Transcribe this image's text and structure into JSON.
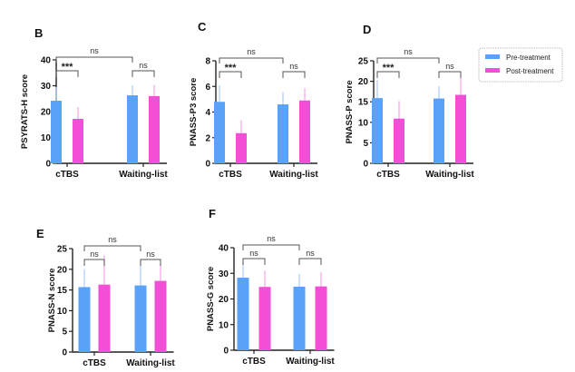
{
  "legend": {
    "entries": [
      {
        "label": "Pre-treatment",
        "color": "#5aa2f8"
      },
      {
        "label": "Post-treatment",
        "color": "#f24fd6"
      }
    ]
  },
  "colors": {
    "pre": "#5aa2f8",
    "pre_err": "#a9cffb",
    "post": "#f24fd6",
    "post_err": "#f6a3e8",
    "axis": "#222222",
    "bracket": "#555555"
  },
  "chart_data": [
    {
      "panel": "B",
      "type": "bar",
      "ylabel": "PSYRATS-H score",
      "ylim": [
        0,
        40
      ],
      "yticks": [
        0,
        10,
        20,
        30,
        40
      ],
      "categories": [
        "cTBS",
        "Waiting-list"
      ],
      "series": [
        {
          "name": "Pre-treatment",
          "values": [
            24.2,
            26.3
          ],
          "error_upper": [
            29.5,
            30.2
          ]
        },
        {
          "name": "Post-treatment",
          "values": [
            17.2,
            26.0
          ],
          "error_upper": [
            21.8,
            30.3
          ]
        }
      ],
      "annotations": [
        {
          "type": "bracket",
          "between": "cTBS pre vs cTBS post",
          "label": "***"
        },
        {
          "type": "bracket",
          "between": "Waiting-list pre vs Waiting-list post",
          "label": "ns"
        },
        {
          "type": "bracket",
          "between": "cTBS pre vs Waiting-list pre",
          "label": "ns"
        }
      ]
    },
    {
      "panel": "C",
      "type": "bar",
      "ylabel": "PNASS-P3 score",
      "ylim": [
        0,
        8
      ],
      "yticks": [
        0,
        2,
        4,
        6,
        8
      ],
      "categories": [
        "cTBS",
        "Waiting-list"
      ],
      "series": [
        {
          "name": "Pre-treatment",
          "values": [
            4.8,
            4.6
          ],
          "error_upper": [
            6.1,
            5.55
          ]
        },
        {
          "name": "Post-treatment",
          "values": [
            2.35,
            4.9
          ],
          "error_upper": [
            3.35,
            5.85
          ]
        }
      ],
      "annotations": [
        {
          "type": "bracket",
          "between": "cTBS pre vs cTBS post",
          "label": "***"
        },
        {
          "type": "bracket",
          "between": "Waiting-list pre vs Waiting-list post",
          "label": "ns"
        },
        {
          "type": "bracket",
          "between": "cTBS pre vs Waiting-list pre",
          "label": "ns"
        }
      ]
    },
    {
      "panel": "D",
      "type": "bar",
      "ylabel": "PNASS-P score",
      "ylim": [
        0,
        25
      ],
      "yticks": [
        0,
        5,
        10,
        15,
        20,
        25
      ],
      "categories": [
        "cTBS",
        "Waiting-list"
      ],
      "series": [
        {
          "name": "Pre-treatment",
          "values": [
            15.9,
            15.8
          ],
          "error_upper": [
            20.3,
            18.8
          ]
        },
        {
          "name": "Post-treatment",
          "values": [
            10.9,
            16.7
          ],
          "error_upper": [
            15.2,
            20.8
          ]
        }
      ],
      "annotations": [
        {
          "type": "bracket",
          "between": "cTBS pre vs cTBS post",
          "label": "***"
        },
        {
          "type": "bracket",
          "between": "Waiting-list pre vs Waiting-list post",
          "label": "ns"
        },
        {
          "type": "bracket",
          "between": "cTBS pre vs Waiting-list pre",
          "label": "ns"
        }
      ]
    },
    {
      "panel": "E",
      "type": "bar",
      "ylabel": "PNASS-N score",
      "ylim": [
        0,
        25
      ],
      "yticks": [
        0,
        5,
        10,
        15,
        20,
        25
      ],
      "categories": [
        "cTBS",
        "Waiting-list"
      ],
      "series": [
        {
          "name": "Pre-treatment",
          "values": [
            15.7,
            16.1
          ],
          "error_upper": [
            20.0,
            21.4
          ]
        },
        {
          "name": "Post-treatment",
          "values": [
            16.3,
            17.2
          ],
          "error_upper": [
            23.4,
            21.0
          ]
        }
      ],
      "annotations": [
        {
          "type": "bracket",
          "between": "cTBS pre vs cTBS post",
          "label": "ns"
        },
        {
          "type": "bracket",
          "between": "Waiting-list pre vs Waiting-list post",
          "label": "ns"
        },
        {
          "type": "bracket",
          "between": "cTBS pre vs Waiting-list pre",
          "label": "ns"
        }
      ]
    },
    {
      "panel": "F",
      "type": "bar",
      "ylabel": "PNASS-G score",
      "ylim": [
        0,
        40
      ],
      "yticks": [
        0,
        10,
        20,
        30,
        40
      ],
      "categories": [
        "cTBS",
        "Waiting-list"
      ],
      "series": [
        {
          "name": "Pre-treatment",
          "values": [
            28.3,
            24.8
          ],
          "error_upper": [
            35.3,
            29.8
          ]
        },
        {
          "name": "Post-treatment",
          "values": [
            24.7,
            24.9
          ],
          "error_upper": [
            31.0,
            30.5
          ]
        }
      ],
      "annotations": [
        {
          "type": "bracket",
          "between": "cTBS pre vs cTBS post",
          "label": "ns"
        },
        {
          "type": "bracket",
          "between": "Waiting-list pre vs Waiting-list post",
          "label": "ns"
        },
        {
          "type": "bracket",
          "between": "cTBS pre vs Waiting-list pre",
          "label": "ns"
        }
      ]
    }
  ]
}
